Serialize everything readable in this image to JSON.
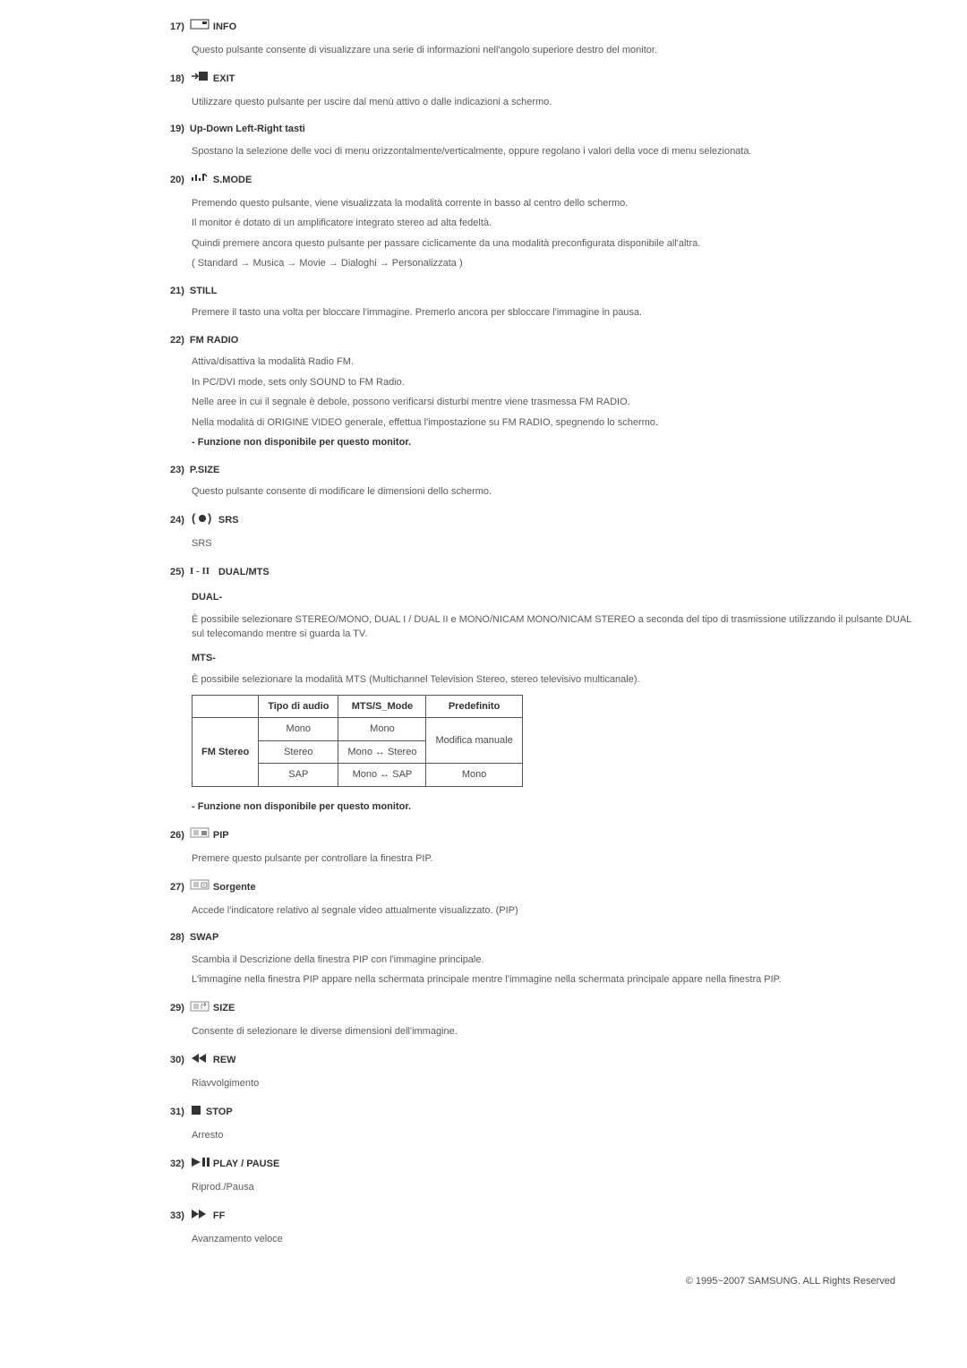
{
  "items": [
    {
      "n": "17)",
      "title": "INFO",
      "icon": "info",
      "desc": [
        "Questo pulsante consente di visualizzare una serie di informazioni nell'angolo superiore destro del monitor."
      ]
    },
    {
      "n": "18)",
      "title": "EXIT",
      "icon": "exit",
      "desc": [
        "Utilizzare questo pulsante per uscire dal menù attivo o dalle indicazioni a schermo."
      ]
    },
    {
      "n": "19)",
      "title": "Up-Down Left-Right tasti",
      "icon": null,
      "desc": [
        "Spostano la selezione delle voci di menu orizzontalmente/verticalmente, oppure regolano i valori della voce di menu selezionata."
      ]
    },
    {
      "n": "20)",
      "title": "S.MODE",
      "icon": "smode",
      "desc": [
        "Premendo questo pulsante, viene visualizzata la modalità corrente in basso al centro dello schermo.",
        "Il monitor è dotato di un amplificatore integrato stereo ad alta fedeltà.",
        "Quindi premere ancora questo pulsante per passare ciclicamente da una modalità preconfigurata disponibile all'altra.",
        "( Standard → Musica → Movie → Dialoghi → Personalizzata )"
      ]
    },
    {
      "n": "21)",
      "title": "STILL",
      "icon": null,
      "desc": [
        "Premere il tasto una volta per bloccare l'immagine. Premerlo ancora per sbloccare l'immagine in pausa."
      ]
    },
    {
      "n": "22)",
      "title": "FM RADIO",
      "icon": null,
      "desc": [
        "Attiva/disattiva la modalità Radio FM.",
        "In PC/DVI mode, sets only SOUND to FM Radio.",
        "Nelle aree in cui il segnale è debole, possono verificarsi disturbi mentre viene trasmessa FM RADIO.",
        "Nella modalità di ORIGINE VIDEO generale, effettua l'impostazione su FM RADIO, spegnendo lo schermo."
      ],
      "note": "- Funzione non disponibile per questo monitor."
    },
    {
      "n": "23)",
      "title": "P.SIZE",
      "icon": null,
      "desc": [
        "Questo pulsante consente di modificare le dimensioni dello schermo."
      ]
    },
    {
      "n": "24)",
      "title": "SRS",
      "icon": "srs",
      "desc": [
        "SRS"
      ]
    },
    {
      "n": "25)",
      "title": "DUAL/MTS",
      "icon": "dual",
      "subheads": [
        {
          "h": "DUAL-",
          "d": [
            "È possibile selezionare STEREO/MONO, DUAL I / DUAL II e MONO/NICAM MONO/NICAM STEREO a seconda del tipo di trasmissione utilizzando il pulsante DUAL sul telecomando mentre si guarda la TV."
          ]
        },
        {
          "h": "MTS-",
          "d": [
            "È possibile selezionare la modalità MTS (Multichannel Television Stereo, stereo televisivo multicanale)."
          ]
        }
      ],
      "table": {
        "headers": [
          "",
          "Tipo di audio",
          "MTS/S_Mode",
          "Predefinito"
        ],
        "rows": [
          {
            "c0": "FM Stereo",
            "c0_rowspan": 3,
            "c1": "Mono",
            "c2": "Mono",
            "c3": "Modifica manuale",
            "c3_rowspan": 2
          },
          {
            "c1": "Stereo",
            "c2": "Mono ↔ Stereo"
          },
          {
            "c1": "SAP",
            "c2": "Mono ↔ SAP",
            "c3": "Mono"
          }
        ]
      },
      "note_after_table": "- Funzione non disponibile per questo monitor."
    },
    {
      "n": "26)",
      "title": "PIP",
      "icon": "pip",
      "desc": [
        "Premere questo pulsante per controllare la finestra PIP."
      ]
    },
    {
      "n": "27)",
      "title": "Sorgente",
      "icon": "sorgente",
      "desc": [
        "Accede l'indicatore relativo al segnale video attualmente visualizzato. (PIP)"
      ]
    },
    {
      "n": "28)",
      "title": "SWAP",
      "icon": null,
      "desc": [
        "Scambia il Descrizione della finestra PIP con l'immagine principale.",
        "L'immagine nella finestra PIP appare nella schermata principale mentre l'immagine nella schermata principale appare nella finestra PIP."
      ]
    },
    {
      "n": "29)",
      "title": "SIZE",
      "icon": "size",
      "desc": [
        "Consente di selezionare le diverse dimensioni dell'immagine."
      ]
    },
    {
      "n": "30)",
      "title": "REW",
      "icon": "rew",
      "desc": [
        "Riavvolgimento"
      ]
    },
    {
      "n": "31)",
      "title": "STOP",
      "icon": "stop",
      "desc": [
        "Arresto"
      ]
    },
    {
      "n": "32)",
      "title": "PLAY / PAUSE",
      "icon": "play",
      "desc": [
        "Riprod./Pausa"
      ]
    },
    {
      "n": "33)",
      "title": "FF",
      "icon": "ff",
      "desc": [
        "Avanzamento veloce"
      ]
    }
  ],
  "footer": "© 1995~2007 SAMSUNG. ALL Rights Reserved",
  "icons_svg": {
    "info": "<svg width='22' height='14' viewBox='0 0 22 14'><rect x='1' y='2' width='20' height='10' fill='none' stroke='#333' stroke-width='1'/><rect x='14' y='4' width='5' height='3' fill='#333'/></svg>",
    "exit": "<svg width='22' height='14' viewBox='0 0 22 14'><rect x='10' y='2' width='10' height='10' fill='#333'/><path d='M2 7 L8 7 M6 4 L9 7 L6 10' fill='none' stroke='#333' stroke-width='1.5'/></svg>",
    "smode": "<svg width='22' height='14' viewBox='0 0 22 14'><path d='M3 11 L3 7 M7 11 L7 4 M11 11 L11 8 M15 11 L15 3' stroke='#333' stroke-width='2'/><path d='M16 3 L19 6' stroke='#333' stroke-width='1.5'/></svg>",
    "srs": "<svg width='28' height='14' viewBox='0 0 28 14'><text x='2' y='11' font-size='13' font-weight='bold' fill='#333'>(</text><circle cx='14' cy='7' r='4' fill='#333'/><text x='20' y='11' font-size='13' font-weight='bold' fill='#333'>)</text></svg>",
    "dual": "<svg width='28' height='14' viewBox='0 0 28 14'><text x='0' y='11' font-size='11' font-family='serif' fill='#333'>I - II</text></svg>",
    "pip": "<svg width='22' height='14' viewBox='0 0 22 14'><rect x='1' y='2' width='20' height='10' fill='none' stroke='#888' stroke-width='1'/><line x1='4' y1='5' x2='10' y2='5' stroke='#888'/><line x1='4' y1='7' x2='10' y2='7' stroke='#888'/><line x1='4' y1='9' x2='10' y2='9' stroke='#888'/><rect x='13' y='5' width='6' height='5' fill='#888'/></svg>",
    "sorgente": "<svg width='22' height='14' viewBox='0 0 22 14'><rect x='1' y='2' width='20' height='10' fill='none' stroke='#888' stroke-width='1'/><line x1='4' y1='5' x2='10' y2='5' stroke='#888'/><line x1='4' y1='7' x2='10' y2='7' stroke='#888'/><line x1='4' y1='9' x2='10' y2='9' stroke='#888'/><rect x='13' y='5' width='6' height='5' fill='none' stroke='#888'/><rect x='15' y='7' width='2' height='1' fill='#888'/></svg>",
    "size": "<svg width='22' height='14' viewBox='0 0 22 14'><rect x='1' y='2' width='20' height='10' fill='none' stroke='#888' stroke-width='1'/><line x1='4' y1='5' x2='10' y2='5' stroke='#888'/><line x1='4' y1='7' x2='10' y2='7' stroke='#888'/><line x1='4' y1='9' x2='10' y2='9' stroke='#888'/><path d='M13 10 L13 5 L18 5 M16 3 L18 5 L16 7' fill='none' stroke='#888' stroke-width='1'/></svg>",
    "rew": "<svg width='22' height='14' viewBox='0 0 22 14'><path d='M10 2 L2 7 L10 12 Z M18 2 L10 7 L18 12 Z' fill='#333'/></svg>",
    "stop": "<svg width='14' height='14' viewBox='0 0 14 14'><rect x='2' y='2' width='10' height='10' fill='#333'/></svg>",
    "play": "<svg width='22' height='14' viewBox='0 0 22 14'><path d='M2 2 L12 7 L2 12 Z' fill='#333'/><rect x='14' y='2' width='3' height='10' fill='#333'/><rect x='19' y='2' width='3' height='10' fill='#333'/></svg>",
    "ff": "<svg width='22' height='14' viewBox='0 0 22 14'><path d='M2 2 L10 7 L2 12 Z M10 2 L18 7 L10 12 Z' fill='#333'/></svg>"
  }
}
